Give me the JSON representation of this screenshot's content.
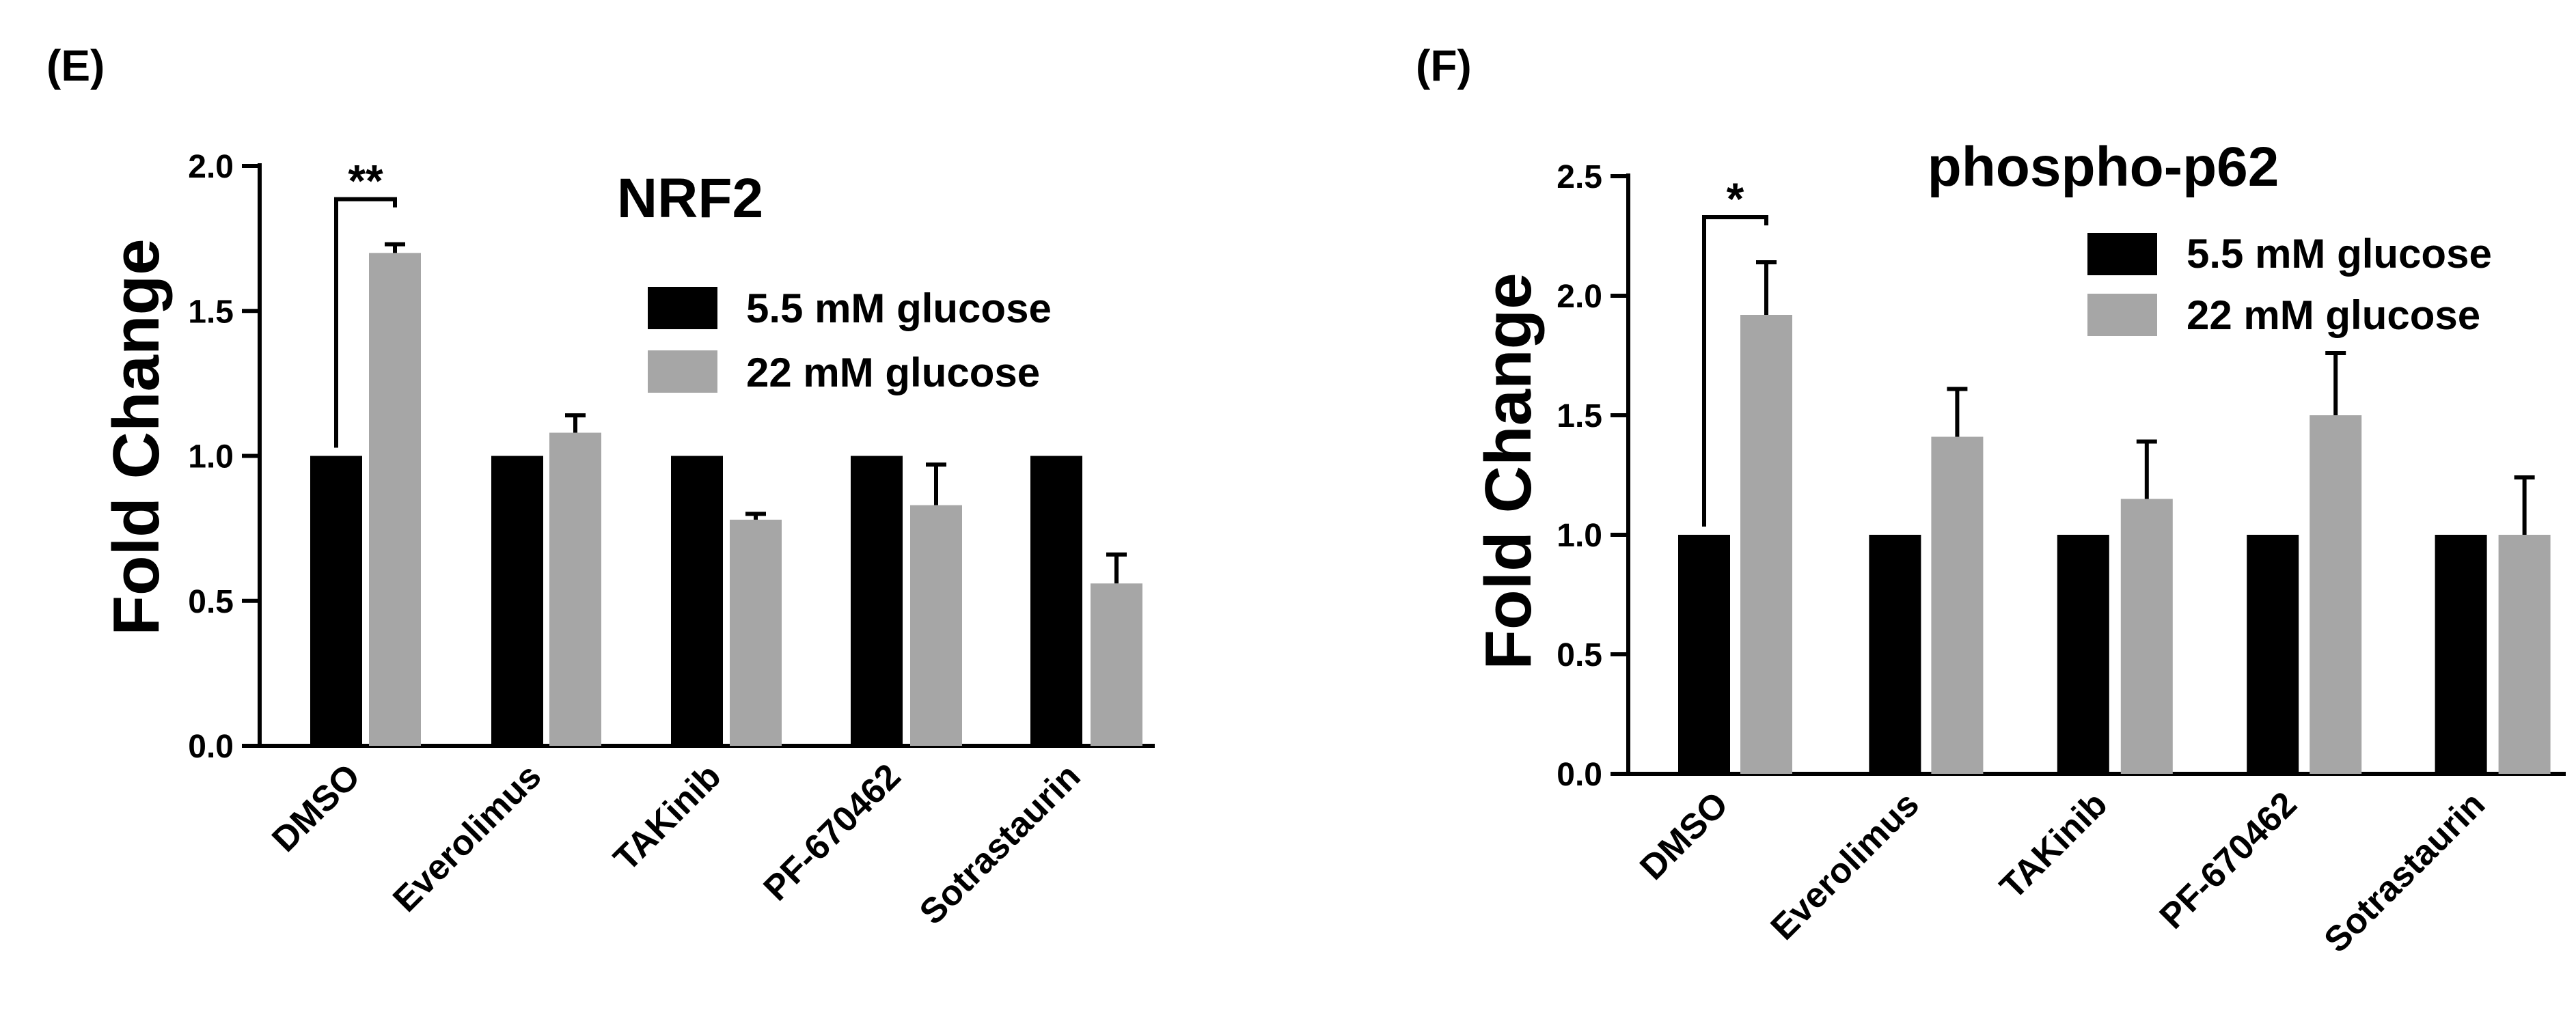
{
  "chart_data": [
    {
      "panel_label": "(E)",
      "type": "bar",
      "title": "NRF2",
      "xlabel": "",
      "ylabel": "Fold Change",
      "ylim": [
        0,
        2.0
      ],
      "yticks": [
        "0.0",
        "0.5",
        "1.0",
        "1.5",
        "2.0"
      ],
      "categories": [
        "DMSO",
        "Everolimus",
        "TAKinib",
        "PF-670462",
        "Sotrastaurin"
      ],
      "series": [
        {
          "name": "5.5 mM glucose",
          "color": "#000000",
          "values": [
            1.0,
            1.0,
            1.0,
            1.0,
            1.0
          ],
          "errors": [
            0,
            0,
            0,
            0,
            0
          ]
        },
        {
          "name": "22 mM glucose",
          "color": "#a6a6a6",
          "values": [
            1.7,
            1.08,
            0.78,
            0.83,
            0.56
          ],
          "errors": [
            0.03,
            0.06,
            0.02,
            0.14,
            0.1
          ]
        }
      ],
      "significance": [
        {
          "category": "DMSO",
          "label": "**"
        }
      ],
      "legend_position": "top-right"
    },
    {
      "panel_label": "(F)",
      "type": "bar",
      "title": "phospho-p62",
      "xlabel": "",
      "ylabel": "Fold Change",
      "ylim": [
        0,
        2.5
      ],
      "yticks": [
        "0.0",
        "0.5",
        "1.0",
        "1.5",
        "2.0",
        "2.5"
      ],
      "categories": [
        "DMSO",
        "Everolimus",
        "TAKinib",
        "PF-670462",
        "Sotrastaurin"
      ],
      "series": [
        {
          "name": "5.5 mM glucose",
          "color": "#000000",
          "values": [
            1.0,
            1.0,
            1.0,
            1.0,
            1.0
          ],
          "errors": [
            0,
            0,
            0,
            0,
            0
          ]
        },
        {
          "name": "22 mM glucose",
          "color": "#a6a6a6",
          "values": [
            1.92,
            1.41,
            1.15,
            1.5,
            1.0
          ],
          "errors": [
            0.22,
            0.2,
            0.24,
            0.26,
            0.24
          ]
        }
      ],
      "significance": [
        {
          "category": "DMSO",
          "label": "*"
        }
      ],
      "legend_position": "top-right"
    }
  ]
}
